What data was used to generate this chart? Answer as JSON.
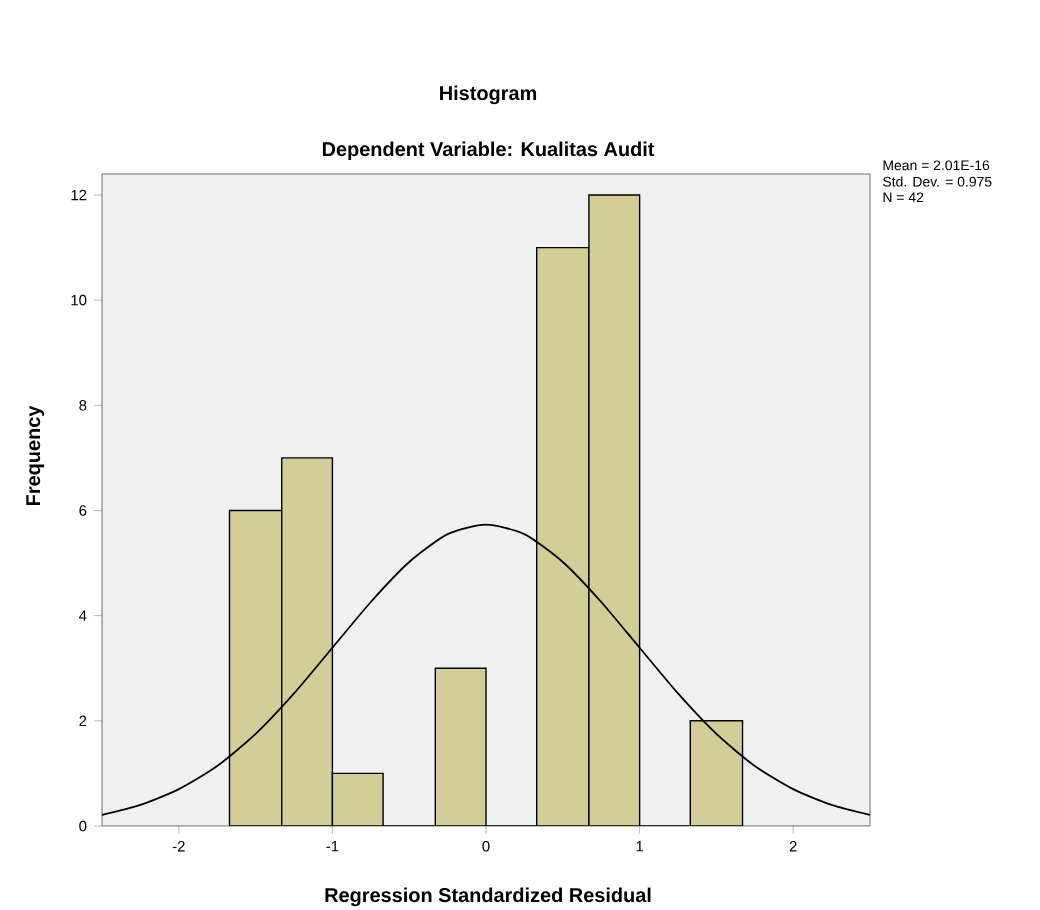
{
  "chart_data": {
    "type": "histogram",
    "title": "Histogram",
    "subtitle": "Dependent Variable: Kualitas Audit",
    "xlabel": "Regression Standardized Residual",
    "ylabel": "Frequency",
    "annotations": [
      "Mean = 2.01E-16",
      "Std. Dev. = 0.975",
      "N = 42"
    ],
    "bins": [
      -1.67,
      -1.33,
      -1.0,
      -0.67,
      -0.33,
      0.0,
      0.33,
      0.67,
      1.0,
      1.33,
      1.67
    ],
    "values": [
      6,
      7,
      1,
      0,
      3,
      0,
      11,
      12,
      0,
      2
    ],
    "color": "#d3ce98",
    "series": [
      {
        "type": "line",
        "color": "#000000",
        "x": [
          -2.5,
          -2.25,
          -2.0,
          -1.75,
          -1.5,
          -1.25,
          -1.0,
          -0.75,
          -0.5,
          -0.25,
          0.0,
          0.25,
          0.5,
          0.75,
          1.0,
          1.25,
          1.5,
          1.75,
          2.0,
          2.25,
          2.5
        ],
        "values": [
          0.21,
          0.4,
          0.7,
          1.14,
          1.75,
          2.52,
          3.39,
          4.26,
          5.02,
          5.55,
          5.73,
          5.55,
          5.02,
          4.26,
          3.39,
          2.52,
          1.75,
          1.14,
          0.7,
          0.4,
          0.21
        ]
      }
    ],
    "xlim": [
      -2.5,
      2.5
    ],
    "ylim": [
      0,
      12.4
    ],
    "xticks": [
      -2,
      -1,
      0,
      1,
      2
    ],
    "yticks": [
      0,
      2,
      4,
      6,
      8,
      10,
      12
    ],
    "grid": false
  }
}
